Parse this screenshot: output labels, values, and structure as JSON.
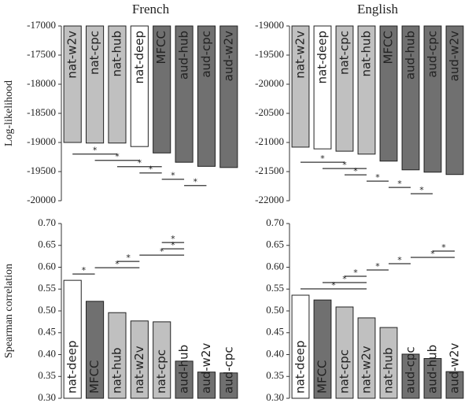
{
  "chart_data": [
    {
      "type": "bar",
      "title": "French",
      "ylabel": "Log-likelihood",
      "categories": [
        "nat-w2v",
        "nat-cpc",
        "nat-hub",
        "nat-deep",
        "MFCC",
        "aud-hub",
        "aud-cpc",
        "aud-w2v"
      ],
      "values": [
        -19000,
        -19010,
        -19010,
        -19070,
        -19180,
        -19340,
        -19410,
        -19430
      ],
      "colors": [
        "#c0c0c0",
        "#c0c0c0",
        "#c0c0c0",
        "#ffffff",
        "#707070",
        "#707070",
        "#707070",
        "#707070"
      ],
      "ylim": [
        -20000,
        -17000
      ],
      "yticks": [
        -20000,
        -19500,
        -19000,
        -18500,
        -18000,
        -17500,
        -17000
      ],
      "significance": [
        {
          "from": "nat-w2v",
          "to": "nat-hub",
          "label": "*"
        },
        {
          "from": "nat-cpc",
          "to": "nat-deep",
          "label": "*"
        },
        {
          "from": "nat-hub",
          "to": "MFCC",
          "label": "*"
        },
        {
          "from": "nat-deep",
          "to": "MFCC",
          "label": "*"
        },
        {
          "from": "MFCC",
          "to": "aud-hub",
          "label": "*"
        },
        {
          "from": "aud-hub",
          "to": "aud-cpc",
          "label": "*"
        }
      ]
    },
    {
      "type": "bar",
      "title": "English",
      "categories": [
        "nat-w2v",
        "nat-deep",
        "nat-cpc",
        "nat-hub",
        "MFCC",
        "aud-hub",
        "aud-cpc",
        "aud-w2v"
      ],
      "values": [
        -21080,
        -21110,
        -21150,
        -21200,
        -21320,
        -21470,
        -21510,
        -21550
      ],
      "colors": [
        "#c0c0c0",
        "#ffffff",
        "#c0c0c0",
        "#c0c0c0",
        "#707070",
        "#707070",
        "#707070",
        "#707070"
      ],
      "ylim": [
        -22000,
        -19000
      ],
      "yticks": [
        -22000,
        -21500,
        -21000,
        -20500,
        -20000,
        -19500,
        -19000
      ],
      "significance": [
        {
          "from": "nat-w2v",
          "to": "nat-cpc",
          "label": "*"
        },
        {
          "from": "nat-deep",
          "to": "nat-hub",
          "label": "*"
        },
        {
          "from": "nat-cpc",
          "to": "nat-hub",
          "label": "*"
        },
        {
          "from": "nat-hub",
          "to": "MFCC",
          "label": "*"
        },
        {
          "from": "MFCC",
          "to": "aud-hub",
          "label": "*"
        },
        {
          "from": "aud-hub",
          "to": "aud-cpc",
          "label": "*"
        }
      ]
    },
    {
      "type": "bar",
      "ylabel": "Spearman correlation",
      "categories": [
        "nat-deep",
        "MFCC",
        "nat-hub",
        "nat-w2v",
        "nat-cpc",
        "aud-hub",
        "aud-w2v",
        "aud-cpc"
      ],
      "values": [
        0.57,
        0.522,
        0.496,
        0.477,
        0.475,
        0.385,
        0.36,
        0.358
      ],
      "colors": [
        "#ffffff",
        "#707070",
        "#c0c0c0",
        "#c0c0c0",
        "#c0c0c0",
        "#707070",
        "#707070",
        "#707070"
      ],
      "ylim": [
        0.3,
        0.7
      ],
      "yticks": [
        {
          "value": 0.3,
          "label": "0.30"
        },
        {
          "value": 0.35,
          "label": "0.35"
        },
        {
          "value": 0.4,
          "label": "0.40"
        },
        {
          "value": 0.45,
          "label": "0.45"
        },
        {
          "value": 0.5,
          "label": "0.50"
        },
        {
          "value": 0.55,
          "label": "0.55"
        },
        {
          "value": 0.6,
          "label": "0.60"
        },
        {
          "value": 0.65,
          "label": "0.65"
        },
        {
          "value": 0.7,
          "label": "0.70"
        }
      ],
      "significance": [
        {
          "from": "nat-deep",
          "to": "MFCC",
          "label": "*"
        },
        {
          "from": "MFCC",
          "to": "nat-w2v",
          "label": "*"
        },
        {
          "from": "nat-hub",
          "to": "nat-w2v",
          "label": "*"
        },
        {
          "from": "nat-w2v",
          "to": "aud-hub",
          "label": "*"
        },
        {
          "from": "nat-cpc",
          "to": "aud-hub",
          "label": "*"
        },
        {
          "from": "nat-cpc",
          "to": "aud-hub",
          "label": "*"
        }
      ]
    },
    {
      "type": "bar",
      "categories": [
        "nat-deep",
        "MFCC",
        "nat-cpc",
        "nat-w2v",
        "nat-hub",
        "aud-cpc",
        "aud-hub",
        "aud-w2v"
      ],
      "values": [
        0.536,
        0.525,
        0.509,
        0.484,
        0.462,
        0.401,
        0.391,
        0.361
      ],
      "colors": [
        "#ffffff",
        "#707070",
        "#c0c0c0",
        "#c0c0c0",
        "#c0c0c0",
        "#707070",
        "#707070",
        "#707070"
      ],
      "ylim": [
        0.3,
        0.7
      ],
      "yticks": [
        {
          "value": 0.3,
          "label": "0.30"
        },
        {
          "value": 0.35,
          "label": "0.35"
        },
        {
          "value": 0.4,
          "label": "0.40"
        },
        {
          "value": 0.45,
          "label": "0.45"
        },
        {
          "value": 0.5,
          "label": "0.50"
        },
        {
          "value": 0.55,
          "label": "0.55"
        },
        {
          "value": 0.6,
          "label": "0.60"
        },
        {
          "value": 0.65,
          "label": "0.65"
        },
        {
          "value": 0.7,
          "label": "0.70"
        }
      ],
      "significance": [
        {
          "from": "nat-deep",
          "to": "nat-w2v",
          "label": "*"
        },
        {
          "from": "MFCC",
          "to": "nat-w2v",
          "label": "*"
        },
        {
          "from": "nat-cpc",
          "to": "nat-w2v",
          "label": "*"
        },
        {
          "from": "nat-w2v",
          "to": "nat-hub",
          "label": "*"
        },
        {
          "from": "nat-hub",
          "to": "aud-cpc",
          "label": "*"
        },
        {
          "from": "aud-cpc",
          "to": "aud-w2v",
          "label": "*"
        },
        {
          "from": "aud-hub",
          "to": "aud-w2v",
          "label": "*"
        }
      ]
    }
  ]
}
